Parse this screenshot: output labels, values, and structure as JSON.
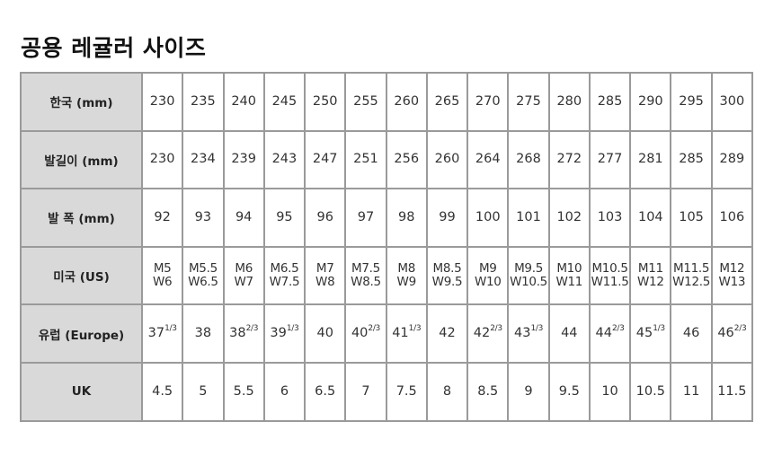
{
  "title": "공용 레귤러 사이즈",
  "rows": [
    {
      "label": "한국 (mm)",
      "cells": [
        {
          "v": "230"
        },
        {
          "v": "235"
        },
        {
          "v": "240"
        },
        {
          "v": "245"
        },
        {
          "v": "250"
        },
        {
          "v": "255"
        },
        {
          "v": "260"
        },
        {
          "v": "265"
        },
        {
          "v": "270"
        },
        {
          "v": "275"
        },
        {
          "v": "280"
        },
        {
          "v": "285"
        },
        {
          "v": "290"
        },
        {
          "v": "295"
        },
        {
          "v": "300"
        }
      ]
    },
    {
      "label": "발길이 (mm)",
      "cells": [
        {
          "v": "230"
        },
        {
          "v": "234"
        },
        {
          "v": "239"
        },
        {
          "v": "243"
        },
        {
          "v": "247"
        },
        {
          "v": "251"
        },
        {
          "v": "256"
        },
        {
          "v": "260"
        },
        {
          "v": "264"
        },
        {
          "v": "268"
        },
        {
          "v": "272"
        },
        {
          "v": "277"
        },
        {
          "v": "281"
        },
        {
          "v": "285"
        },
        {
          "v": "289"
        }
      ]
    },
    {
      "label": "발 폭 (mm)",
      "cells": [
        {
          "v": "92"
        },
        {
          "v": "93"
        },
        {
          "v": "94"
        },
        {
          "v": "95"
        },
        {
          "v": "96"
        },
        {
          "v": "97"
        },
        {
          "v": "98"
        },
        {
          "v": "99"
        },
        {
          "v": "100"
        },
        {
          "v": "101"
        },
        {
          "v": "102"
        },
        {
          "v": "103"
        },
        {
          "v": "104"
        },
        {
          "v": "105"
        },
        {
          "v": "106"
        }
      ]
    },
    {
      "label": "미국 (US)",
      "cells": [
        {
          "v": "M5",
          "w": "W6"
        },
        {
          "v": "M5.5",
          "w": "W6.5"
        },
        {
          "v": "M6",
          "w": "W7"
        },
        {
          "v": "M6.5",
          "w": "W7.5"
        },
        {
          "v": "M7",
          "w": "W8"
        },
        {
          "v": "M7.5",
          "w": "W8.5"
        },
        {
          "v": "M8",
          "w": "W9"
        },
        {
          "v": "M8.5",
          "w": "W9.5"
        },
        {
          "v": "M9",
          "w": "W10"
        },
        {
          "v": "M9.5",
          "w": "W10.5"
        },
        {
          "v": "M10",
          "w": "W11"
        },
        {
          "v": "M10.5",
          "w": "W11.5"
        },
        {
          "v": "M11",
          "w": "W12"
        },
        {
          "v": "M11.5",
          "w": "W12.5"
        },
        {
          "v": "M12",
          "w": "W13"
        }
      ]
    },
    {
      "label": "유럽 (Europe)",
      "cells": [
        {
          "v": "37",
          "frac": "1/3"
        },
        {
          "v": "38"
        },
        {
          "v": "38",
          "frac": "2/3"
        },
        {
          "v": "39",
          "frac": "1/3"
        },
        {
          "v": "40"
        },
        {
          "v": "40",
          "frac": "2/3"
        },
        {
          "v": "41",
          "frac": "1/3"
        },
        {
          "v": "42"
        },
        {
          "v": "42",
          "frac": "2/3"
        },
        {
          "v": "43",
          "frac": "1/3"
        },
        {
          "v": "44"
        },
        {
          "v": "44",
          "frac": "2/3"
        },
        {
          "v": "45",
          "frac": "1/3"
        },
        {
          "v": "46"
        },
        {
          "v": "46",
          "frac": "2/3"
        }
      ]
    },
    {
      "label": "UK",
      "cells": [
        {
          "v": "4.5"
        },
        {
          "v": "5"
        },
        {
          "v": "5.5"
        },
        {
          "v": "6"
        },
        {
          "v": "6.5"
        },
        {
          "v": "7"
        },
        {
          "v": "7.5"
        },
        {
          "v": "8"
        },
        {
          "v": "8.5"
        },
        {
          "v": "9"
        },
        {
          "v": "9.5"
        },
        {
          "v": "10"
        },
        {
          "v": "10.5"
        },
        {
          "v": "11"
        },
        {
          "v": "11.5"
        }
      ]
    }
  ],
  "colors": {
    "header_bg": "#d9d9d9",
    "border": "#9a9a9a"
  }
}
